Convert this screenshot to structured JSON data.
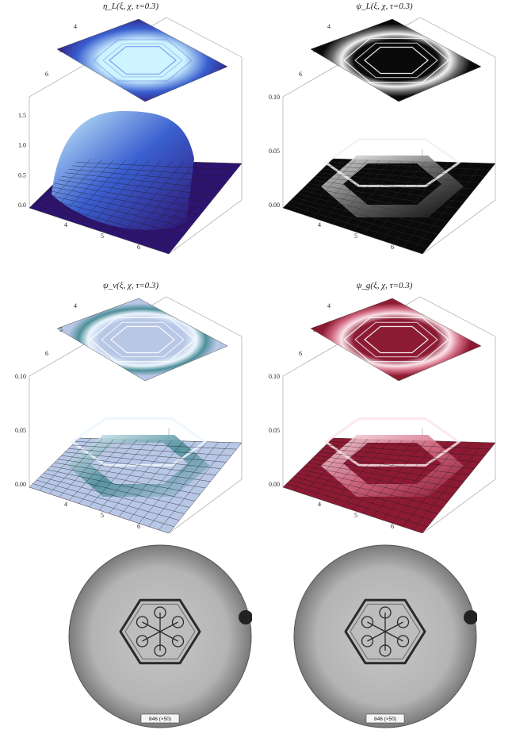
{
  "panels": [
    {
      "id": "etaL",
      "title": "η_L(ξ, χ, τ=0.3)",
      "colors": {
        "dark": "#2e1470",
        "mid": "#3a5fd0",
        "light": "#cdf4ff",
        "mesh": "#1a1a1a"
      },
      "z_ticks": [
        "0.0",
        "0.5",
        "1.0",
        "1.5"
      ],
      "top_y_ticks": [
        "4",
        "5",
        "6"
      ],
      "bottom_x_ticks": [
        "4",
        "5",
        "6"
      ],
      "surface": "plateau"
    },
    {
      "id": "psiL",
      "title": "ψ_L(ξ, χ, τ=0.3)",
      "colors": {
        "dark": "#0a0a0a",
        "mid": "#707070",
        "light": "#f2f2f2",
        "mesh": "#333333"
      },
      "z_ticks": [
        "0.00",
        "0.05",
        "0.10"
      ],
      "top_y_ticks": [
        "4",
        "5",
        "6"
      ],
      "bottom_x_ticks": [
        "4",
        "5",
        "6"
      ],
      "surface": "ring"
    },
    {
      "id": "psiv",
      "title": "ψ_v(ξ, χ, τ=0.3)",
      "colors": {
        "dark": "#b8c7e6",
        "mid": "#4e8f9a",
        "light": "#ecf6ff",
        "mesh": "#111111"
      },
      "z_ticks": [
        "0.00",
        "0.05",
        "0.10"
      ],
      "top_y_ticks": [
        "4",
        "5",
        "6"
      ],
      "bottom_x_ticks": [
        "4",
        "5",
        "6"
      ],
      "surface": "ring"
    },
    {
      "id": "psig",
      "title": "ψ_g(ξ, χ, τ=0.3)",
      "colors": {
        "dark": "#8c1a33",
        "mid": "#d46e86",
        "light": "#fbe4ea",
        "mesh": "#1a1a1a"
      },
      "z_ticks": [
        "0.00",
        "0.05",
        "0.10"
      ],
      "top_y_ticks": [
        "4",
        "5",
        "6"
      ],
      "bottom_x_ticks": [
        "4",
        "5",
        "6"
      ],
      "surface": "ring"
    }
  ],
  "photos": [
    {
      "id": "photo-left",
      "label": "846 (×50)"
    },
    {
      "id": "photo-right",
      "label": "846 (×50)"
    }
  ],
  "chart_data": [
    {
      "type": "surface",
      "title": "η_L(ξ, χ, τ=0.3)",
      "zlim": [
        0,
        1.8
      ],
      "z_ticks": [
        0.0,
        0.5,
        1.0,
        1.5
      ],
      "x_ticks": [
        4,
        5,
        6
      ],
      "y_ticks": [
        4,
        5,
        6
      ],
      "shape": "hexagonal plateau",
      "colormap": "blue"
    },
    {
      "type": "surface",
      "title": "ψ_L(ξ, χ, τ=0.3)",
      "zlim": [
        0,
        0.11
      ],
      "z_ticks": [
        0.0,
        0.05,
        0.1
      ],
      "x_ticks": [
        4,
        5,
        6
      ],
      "y_ticks": [
        4,
        5,
        6
      ],
      "shape": "hexagonal ring",
      "colormap": "gray"
    },
    {
      "type": "surface",
      "title": "ψ_v(ξ, χ, τ=0.3)",
      "zlim": [
        0,
        0.11
      ],
      "z_ticks": [
        0.0,
        0.05,
        0.1
      ],
      "x_ticks": [
        4,
        5,
        6
      ],
      "y_ticks": [
        4,
        5,
        6
      ],
      "shape": "hexagonal ring",
      "colormap": "light blue"
    },
    {
      "type": "surface",
      "title": "ψ_g(ξ, χ, τ=0.3)",
      "zlim": [
        0,
        0.11
      ],
      "z_ticks": [
        0.0,
        0.05,
        0.1
      ],
      "x_ticks": [
        4,
        5,
        6
      ],
      "y_ticks": [
        4,
        5,
        6
      ],
      "shape": "hexagonal ring",
      "colormap": "crimson"
    }
  ]
}
